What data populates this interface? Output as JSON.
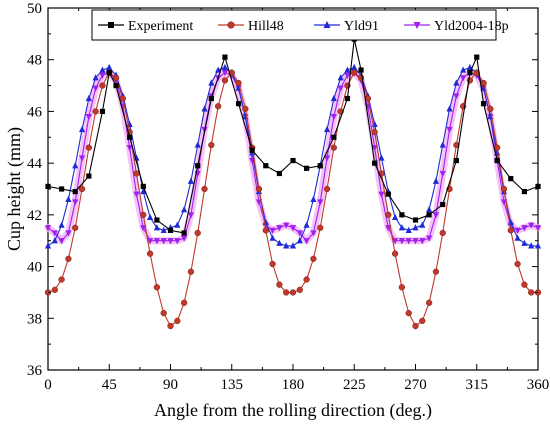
{
  "chart_data": {
    "type": "line",
    "xlabel": "Angle from the rolling direction (deg.)",
    "ylabel": "Cup height (mm)",
    "xlim": [
      0,
      360
    ],
    "ylim": [
      36,
      50
    ],
    "xticks": [
      0,
      45,
      90,
      135,
      180,
      225,
      270,
      315,
      360
    ],
    "yticks": [
      36,
      38,
      40,
      42,
      44,
      46,
      48,
      50
    ],
    "grid": false,
    "legend": "top, single row inside plot",
    "series": [
      {
        "name": "Experiment",
        "color": "#000000",
        "marker": "square",
        "x": [
          0,
          10,
          20,
          30,
          40,
          45,
          50,
          60,
          70,
          80,
          90,
          100,
          110,
          120,
          130,
          140,
          150,
          160,
          170,
          180,
          190,
          200,
          210,
          220,
          225,
          230,
          240,
          250,
          260,
          270,
          280,
          290,
          300,
          310,
          315,
          320,
          330,
          340,
          350,
          360
        ],
        "y": [
          43.1,
          43.0,
          42.9,
          43.5,
          46.0,
          47.5,
          47.0,
          45.0,
          43.1,
          41.8,
          41.4,
          41.3,
          43.9,
          46.5,
          48.1,
          46.3,
          44.5,
          43.9,
          43.6,
          44.1,
          43.8,
          43.9,
          45.0,
          46.5,
          48.8,
          47.6,
          44.0,
          42.8,
          42.0,
          41.8,
          42.0,
          42.4,
          44.1,
          47.5,
          48.1,
          46.3,
          44.1,
          43.4,
          42.9,
          43.1
        ]
      },
      {
        "name": "Hill48",
        "color": "#c0392b",
        "marker": "circle",
        "x": [
          0,
          5,
          10,
          15,
          20,
          25,
          30,
          35,
          40,
          45,
          50,
          55,
          60,
          65,
          70,
          75,
          80,
          85,
          90,
          95,
          100,
          105,
          110,
          115,
          120,
          125,
          130,
          135,
          140,
          145,
          150,
          155,
          160,
          165,
          170,
          175,
          180,
          185,
          190,
          195,
          200,
          205,
          210,
          215,
          220,
          225,
          230,
          235,
          240,
          245,
          250,
          255,
          260,
          265,
          270,
          275,
          280,
          285,
          290,
          295,
          300,
          305,
          310,
          315,
          320,
          325,
          330,
          335,
          340,
          345,
          350,
          355,
          360
        ],
        "y": [
          39.0,
          39.1,
          39.5,
          40.3,
          41.5,
          43.0,
          44.6,
          46.0,
          47.0,
          47.5,
          47.3,
          46.5,
          45.2,
          43.6,
          42.0,
          40.5,
          39.2,
          38.2,
          37.7,
          37.9,
          38.6,
          39.8,
          41.3,
          43.0,
          44.7,
          46.2,
          47.2,
          47.5,
          47.1,
          46.1,
          44.6,
          43.0,
          41.4,
          40.1,
          39.3,
          39.0,
          39.0,
          39.1,
          39.5,
          40.3,
          41.5,
          43.0,
          44.6,
          46.0,
          47.0,
          47.5,
          47.3,
          46.5,
          45.2,
          43.6,
          42.0,
          40.5,
          39.2,
          38.2,
          37.7,
          37.9,
          38.6,
          39.8,
          41.3,
          43.0,
          44.7,
          46.2,
          47.2,
          47.5,
          47.1,
          46.1,
          44.6,
          43.0,
          41.4,
          40.1,
          39.3,
          39.0,
          39.0
        ]
      },
      {
        "name": "Yld91",
        "color": "#1f2ad6",
        "marker": "triangle-up",
        "x": [
          0,
          5,
          10,
          15,
          20,
          25,
          30,
          35,
          40,
          45,
          50,
          55,
          60,
          65,
          70,
          75,
          80,
          85,
          90,
          95,
          100,
          105,
          110,
          115,
          120,
          125,
          130,
          135,
          140,
          145,
          150,
          155,
          160,
          165,
          170,
          175,
          180,
          185,
          190,
          195,
          200,
          205,
          210,
          215,
          220,
          225,
          230,
          235,
          240,
          245,
          250,
          255,
          260,
          265,
          270,
          275,
          280,
          285,
          290,
          295,
          300,
          305,
          310,
          315,
          320,
          325,
          330,
          335,
          340,
          345,
          350,
          355,
          360
        ],
        "y": [
          40.8,
          41.0,
          41.6,
          42.6,
          43.9,
          45.3,
          46.5,
          47.3,
          47.6,
          47.7,
          47.4,
          46.6,
          45.5,
          44.2,
          42.9,
          41.9,
          41.5,
          41.4,
          41.5,
          41.6,
          42.2,
          43.3,
          44.7,
          46.1,
          47.1,
          47.6,
          47.7,
          47.5,
          46.9,
          45.8,
          44.4,
          42.9,
          41.7,
          41.1,
          40.9,
          40.8,
          40.8,
          41.0,
          41.6,
          42.6,
          43.9,
          45.3,
          46.5,
          47.3,
          47.6,
          47.7,
          47.4,
          46.6,
          45.5,
          44.2,
          42.9,
          41.9,
          41.5,
          41.4,
          41.5,
          41.6,
          42.2,
          43.3,
          44.7,
          46.1,
          47.1,
          47.6,
          47.7,
          47.5,
          46.9,
          45.8,
          44.4,
          42.9,
          41.7,
          41.1,
          40.9,
          40.8,
          40.8
        ]
      },
      {
        "name": "Yld2004-18p",
        "color": "#a020f0",
        "marker": "triangle-down",
        "x": [
          0,
          5,
          10,
          15,
          20,
          25,
          30,
          35,
          40,
          45,
          50,
          55,
          60,
          65,
          70,
          75,
          80,
          85,
          90,
          95,
          100,
          105,
          110,
          115,
          120,
          125,
          130,
          135,
          140,
          145,
          150,
          155,
          160,
          165,
          170,
          175,
          180,
          185,
          190,
          195,
          200,
          205,
          210,
          215,
          220,
          225,
          230,
          235,
          240,
          245,
          250,
          255,
          260,
          265,
          270,
          275,
          280,
          285,
          290,
          295,
          300,
          305,
          310,
          315,
          320,
          325,
          330,
          335,
          340,
          345,
          350,
          355,
          360
        ],
        "y": [
          41.5,
          41.3,
          41.0,
          41.3,
          42.5,
          44.2,
          45.8,
          46.9,
          47.4,
          47.5,
          47.2,
          46.2,
          44.6,
          42.8,
          41.5,
          41.0,
          41.0,
          41.0,
          41.0,
          41.0,
          41.1,
          42.0,
          43.6,
          45.3,
          46.6,
          47.3,
          47.5,
          47.4,
          46.9,
          45.8,
          44.1,
          42.5,
          41.6,
          41.4,
          41.5,
          41.6,
          41.5,
          41.3,
          41.0,
          41.3,
          42.5,
          44.2,
          45.8,
          46.9,
          47.4,
          47.5,
          47.2,
          46.2,
          44.6,
          42.8,
          41.5,
          41.0,
          41.0,
          41.0,
          41.0,
          41.0,
          41.1,
          42.0,
          43.6,
          45.3,
          46.6,
          47.3,
          47.5,
          47.4,
          46.9,
          45.8,
          44.1,
          42.5,
          41.6,
          41.4,
          41.5,
          41.6,
          41.5
        ]
      }
    ]
  }
}
